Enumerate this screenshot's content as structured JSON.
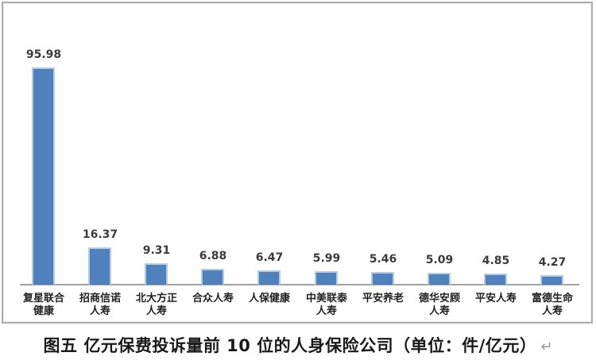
{
  "figure": {
    "caption": "图五 亿元保费投诉量前 10 位的人身保险公司（单位：件/亿元）",
    "caption_mark": "↵"
  },
  "colors": {
    "bar_fill": "#4f81bd",
    "bar_edge": "#b3cbe7",
    "axis_line": "#a2a2a2",
    "frame_border": "#aeaeae",
    "value_label": "#3b3b3b",
    "category_label": "#222222",
    "caption_text": "#1a1a1a"
  },
  "chart_data": {
    "type": "bar",
    "title": "图五 亿元保费投诉量前 10 位的人身保险公司（单位：件/亿元）",
    "unit": "件/亿元",
    "categories": [
      "复星联合健康",
      "招商信诺人寿",
      "北大方正人寿",
      "合众人寿",
      "人保健康",
      "中美联泰人寿",
      "平安养老",
      "德华安顾人寿",
      "平安人寿",
      "富德生命人寿"
    ],
    "category_lines": [
      [
        "复星联合",
        "健康"
      ],
      [
        "招商信诺",
        "人寿"
      ],
      [
        "北大方正",
        "人寿"
      ],
      [
        "合众人寿"
      ],
      [
        "人保健康"
      ],
      [
        "中美联泰",
        "人寿"
      ],
      [
        "平安养老"
      ],
      [
        "德华安顾",
        "人寿"
      ],
      [
        "平安人寿"
      ],
      [
        "富德生命",
        "人寿"
      ]
    ],
    "values": [
      95.98,
      16.37,
      9.31,
      6.88,
      6.47,
      5.99,
      5.46,
      5.09,
      4.85,
      4.27
    ],
    "data_labels": true,
    "xlabel": "",
    "ylabel": "",
    "ylim": [
      0,
      100
    ],
    "y_axis_visible": false,
    "grid": false,
    "legend": false
  }
}
